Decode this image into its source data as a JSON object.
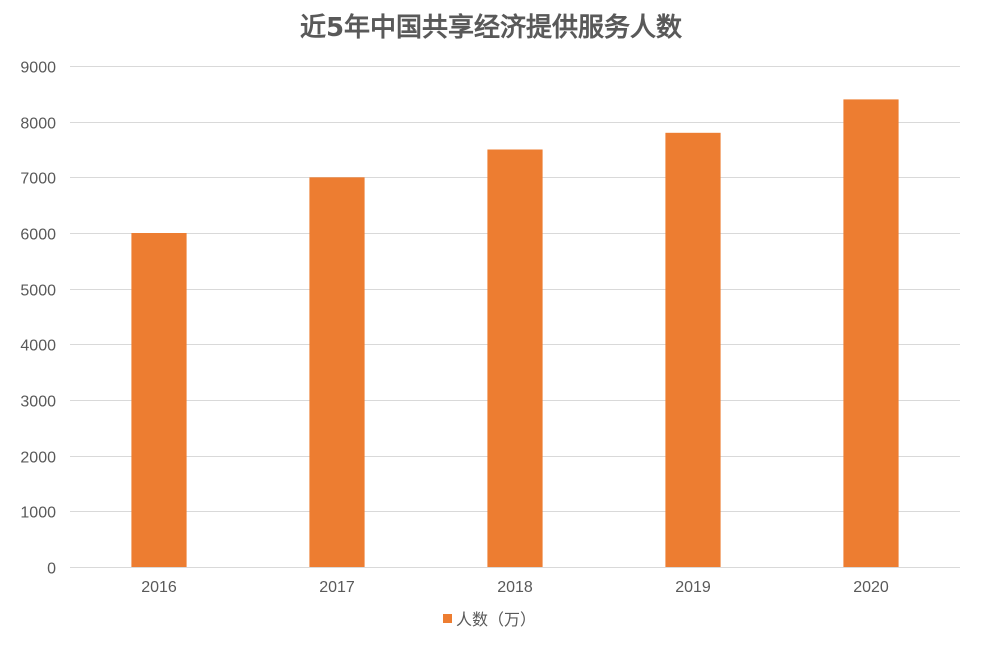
{
  "chart_data": {
    "type": "bar",
    "title": "近5年中国共享经济提供服务人数",
    "categories": [
      "2016",
      "2017",
      "2018",
      "2019",
      "2020"
    ],
    "series": [
      {
        "name": "人数（万）",
        "values": [
          6000,
          7000,
          7500,
          7800,
          8400
        ],
        "color": "#ED7D31"
      }
    ],
    "ylim": [
      0,
      9000
    ],
    "yticks": [
      "0",
      "1000",
      "2000",
      "3000",
      "4000",
      "5000",
      "6000",
      "7000",
      "8000",
      "9000"
    ],
    "grid": true,
    "legend_position": "bottom"
  }
}
